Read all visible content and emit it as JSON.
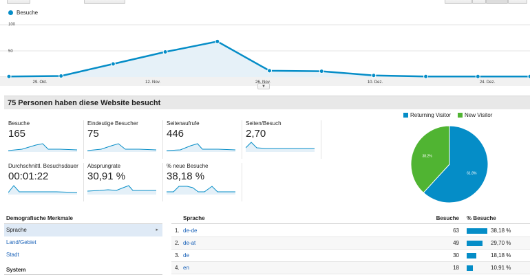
{
  "main_chart": {
    "legend": "Besuche",
    "y_ticks": [
      "100",
      "50"
    ],
    "x_labels": [
      "29. Okt.",
      "12. Nov.",
      "26. Nov.",
      "10. Dez.",
      "24. Dez."
    ],
    "accent": "#058dc7"
  },
  "chart_data": {
    "type": "area",
    "series": [
      {
        "name": "Besuche",
        "values": [
          1,
          2,
          25,
          48,
          68,
          12,
          11,
          3,
          1,
          1,
          1
        ]
      }
    ],
    "ylim": [
      0,
      100
    ],
    "xlabel": "",
    "ylabel": ""
  },
  "heading": "75 Personen haben diese Website besucht",
  "metrics": [
    {
      "label": "Besuche",
      "value": "165"
    },
    {
      "label": "Eindeutige Besucher",
      "value": "75"
    },
    {
      "label": "Seitenaufrufe",
      "value": "446"
    },
    {
      "label": "Seiten/Besuch",
      "value": "2,70"
    },
    {
      "label": "Durchschnittl. Besuchsdauer",
      "value": "00:01:22"
    },
    {
      "label": "Absprungrate",
      "value": "30,91 %"
    },
    {
      "label": "% neue Besuche",
      "value": "38,18 %"
    }
  ],
  "pie": {
    "legend": [
      {
        "label": "Returning Visitor",
        "color": "#058dc7"
      },
      {
        "label": "New Visitor",
        "color": "#50b432"
      }
    ],
    "slices": [
      {
        "label": "Returning Visitor",
        "value": 61.8,
        "text": "61.8%"
      },
      {
        "label": "New Visitor",
        "value": 38.2,
        "text": "38.2%"
      }
    ]
  },
  "demographics": {
    "title": "Demografische Merkmale",
    "items": [
      "Sprache",
      "Land/Gebiet",
      "Stadt"
    ],
    "section2": "System"
  },
  "language_table": {
    "headers": {
      "lang": "Sprache",
      "visits": "Besuche",
      "pct": "% Besuche"
    },
    "rows": [
      {
        "n": "1.",
        "lang": "de-de",
        "visits": "63",
        "pct": "38,18 %",
        "share": 0.3818
      },
      {
        "n": "2.",
        "lang": "de-at",
        "visits": "49",
        "pct": "29,70 %",
        "share": 0.297
      },
      {
        "n": "3.",
        "lang": "de",
        "visits": "30",
        "pct": "18,18 %",
        "share": 0.1818
      },
      {
        "n": "4.",
        "lang": "en",
        "visits": "18",
        "pct": "10,91 %",
        "share": 0.1091
      }
    ]
  }
}
